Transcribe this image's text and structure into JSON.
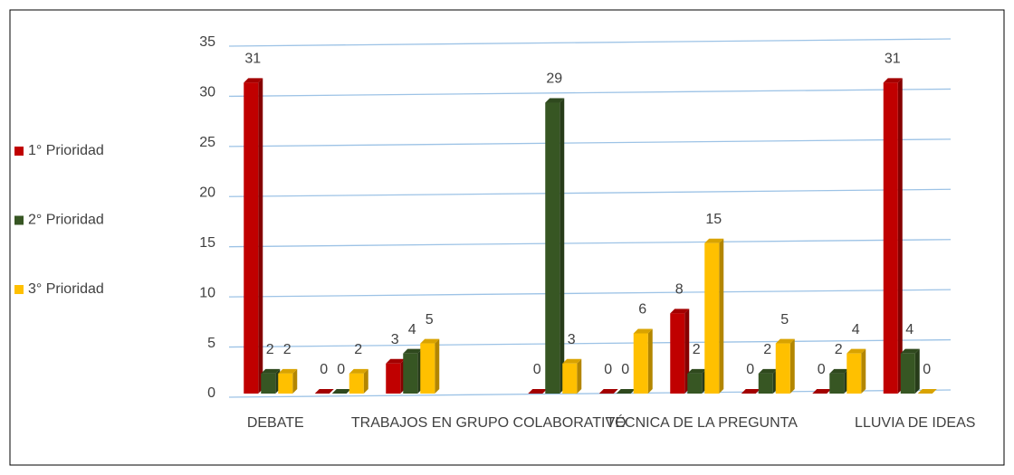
{
  "chart_data": {
    "type": "bar",
    "categories": [
      "DEBATE",
      null,
      null,
      "TRABAJOS EN GRUPO COLABORATIVO",
      null,
      null,
      "TÉCNICA DE LA PREGUNTA",
      null,
      null,
      "LLUVIA DE IDEAS"
    ],
    "series": [
      {
        "name": "1° Prioridad",
        "color": "#c00000",
        "values": [
          31,
          0,
          3,
          null,
          0,
          0,
          8,
          0,
          0,
          31
        ]
      },
      {
        "name": "2° Prioridad",
        "color": "#375623",
        "values": [
          2,
          0,
          4,
          null,
          29,
          0,
          2,
          2,
          2,
          4
        ]
      },
      {
        "name": "3° Prioridad",
        "color": "#ffc000",
        "values": [
          2,
          2,
          5,
          null,
          3,
          6,
          15,
          5,
          4,
          0
        ]
      }
    ],
    "ylim": [
      0,
      35
    ],
    "yticks": [
      0,
      5,
      10,
      15,
      20,
      25,
      30,
      35
    ],
    "grid": true,
    "legend": "left"
  }
}
